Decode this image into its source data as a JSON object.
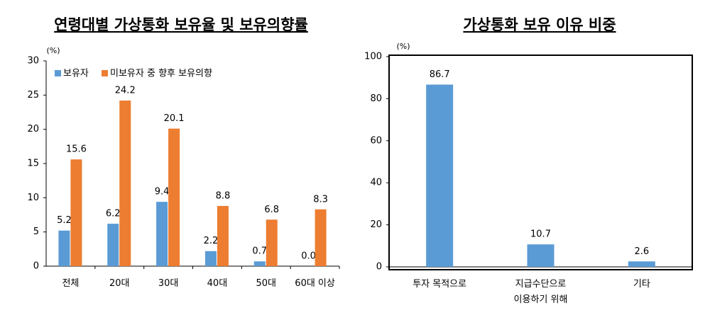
{
  "chart_data": [
    {
      "type": "bar",
      "title": "연령대별 가상통화 보유율 및 보유의향률",
      "unit": "(%)",
      "categories": [
        "전체",
        "20대",
        "30대",
        "40대",
        "50대",
        "60대 이상"
      ],
      "series": [
        {
          "name": "보유자",
          "color": "#5b9bd5",
          "values": [
            5.2,
            6.2,
            9.4,
            2.2,
            0.7,
            0
          ],
          "value_labels": [
            "5.2",
            "6.2",
            "9.4",
            "2.2",
            "0.7",
            "0.0"
          ]
        },
        {
          "name": "미보유자 중 향후 보유의향",
          "color": "#ed7d31",
          "values": [
            15.6,
            24.2,
            20.1,
            8.8,
            6.8,
            8.3
          ]
        }
      ],
      "ylim": [
        0,
        30
      ],
      "yticks": [
        0,
        5,
        10,
        15,
        20,
        25,
        30
      ],
      "legend": "upper left",
      "frame": false
    },
    {
      "type": "bar",
      "title": "가상통화 보유 이유 비중",
      "unit": "(%)",
      "categories": [
        "투자 목적으로",
        "지급수단으로\n이용하기 위해",
        "기타"
      ],
      "series": [
        {
          "color": "#5b9bd5",
          "values": [
            86.7,
            10.7,
            2.6
          ]
        }
      ],
      "ylim": [
        0,
        100
      ],
      "yticks": [
        0,
        20,
        40,
        60,
        80,
        100
      ],
      "frame": true
    }
  ]
}
